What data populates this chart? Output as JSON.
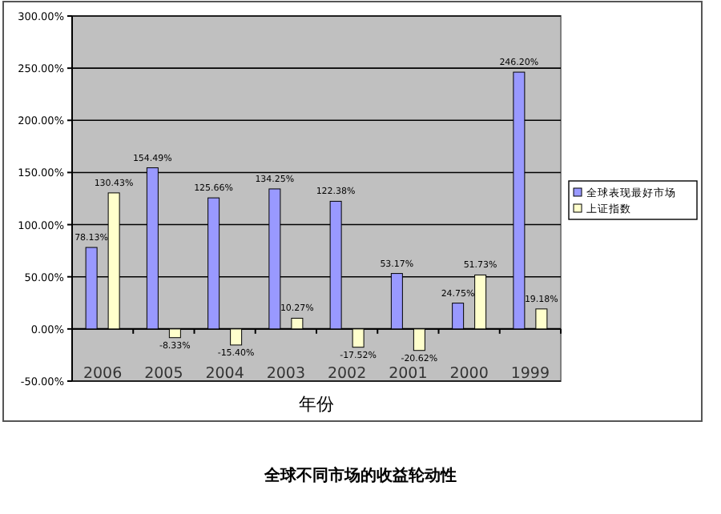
{
  "chart_data": {
    "type": "bar",
    "title": "全球不同市场的收益轮动性",
    "xlabel": "年份",
    "categories": [
      "2006",
      "2005",
      "2004",
      "2003",
      "2002",
      "2001",
      "2000",
      "1999"
    ],
    "series": [
      {
        "name": "全球表现最好市场",
        "color": "#9999ff",
        "values": [
          78.13,
          154.49,
          125.66,
          134.25,
          122.38,
          53.17,
          24.75,
          246.2
        ],
        "value_labels": [
          "78.13%",
          "154.49%",
          "125.66%",
          "134.25%",
          "122.38%",
          "53.17%",
          "24.75%",
          "246.20%"
        ]
      },
      {
        "name": "上证指数",
        "color": "#ffffcc",
        "values": [
          130.43,
          -8.33,
          -15.4,
          10.27,
          -17.52,
          -20.62,
          51.73,
          19.18
        ],
        "value_labels": [
          "130.43%",
          "-8.33%",
          "-15.40%",
          "10.27%",
          "-17.52%",
          "-20.62%",
          "51.73%",
          "19.18%"
        ]
      }
    ],
    "ylim": [
      -50,
      300
    ],
    "yticks": [
      {
        "value": -50,
        "label": "-50.00%"
      },
      {
        "value": 0,
        "label": "0.00%"
      },
      {
        "value": 50,
        "label": "50.00%"
      },
      {
        "value": 100,
        "label": "100.00%"
      },
      {
        "value": 150,
        "label": "150.00%"
      },
      {
        "value": 200,
        "label": "200.00%"
      },
      {
        "value": 250,
        "label": "250.00%"
      },
      {
        "value": 300,
        "label": "300.00%"
      }
    ],
    "grid": "y",
    "legend": "right"
  }
}
